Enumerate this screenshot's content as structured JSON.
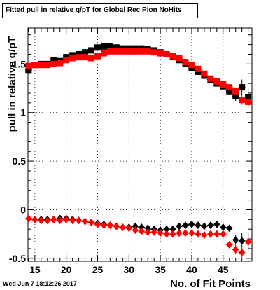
{
  "chart_data": {
    "type": "scatter",
    "title": "Fitted pull in relative q/pT  for Global Rec Pion NoHits",
    "xlabel": "No. of Fit Points",
    "ylabel": "pull in relative q/pT",
    "xlim": [
      13.9,
      49.6
    ],
    "ylim": [
      -0.53,
      1.87
    ],
    "x_ticks": [
      15,
      20,
      25,
      30,
      35,
      40,
      45
    ],
    "y_ticks": [
      -0.5,
      0,
      0.5,
      1,
      1.5
    ],
    "x_tick_labels": [
      "15",
      "20",
      "25",
      "30",
      "35",
      "40",
      "45"
    ],
    "y_tick_labels": [
      "-0.5",
      "0",
      "0.5",
      "1",
      "1.5"
    ],
    "grid": true,
    "timestamp": "Wed Jun  7 18:12:26 2017",
    "series": [
      {
        "color": "#000000",
        "marker": "square",
        "x": [
          14,
          15,
          16,
          17,
          18,
          19,
          20,
          21,
          22,
          23,
          24,
          25,
          26,
          27,
          28,
          29,
          30,
          31,
          32,
          33,
          34,
          35,
          36,
          37,
          38,
          39,
          40,
          41,
          42,
          43,
          44,
          45,
          46,
          47,
          48,
          49
        ],
        "y": [
          1.44,
          1.49,
          1.5,
          1.5,
          1.54,
          1.53,
          1.57,
          1.59,
          1.6,
          1.62,
          1.64,
          1.67,
          1.68,
          1.68,
          1.67,
          1.66,
          1.66,
          1.66,
          1.66,
          1.65,
          1.64,
          1.62,
          1.6,
          1.57,
          1.54,
          1.5,
          1.46,
          1.42,
          1.38,
          1.34,
          1.3,
          1.27,
          1.22,
          1.17,
          1.26,
          1.16
        ],
        "err": [
          0.02,
          0.02,
          0.02,
          0.02,
          0.02,
          0.02,
          0.02,
          0.02,
          0.02,
          0.02,
          0.02,
          0.02,
          0.02,
          0.02,
          0.02,
          0.02,
          0.02,
          0.02,
          0.02,
          0.02,
          0.02,
          0.02,
          0.02,
          0.02,
          0.02,
          0.02,
          0.02,
          0.02,
          0.02,
          0.02,
          0.03,
          0.03,
          0.04,
          0.05,
          0.08,
          0.1
        ]
      },
      {
        "color": "#ff0000",
        "marker": "square",
        "x": [
          14,
          15,
          16,
          17,
          18,
          19,
          20,
          21,
          22,
          23,
          24,
          25,
          26,
          27,
          28,
          29,
          30,
          31,
          32,
          33,
          34,
          35,
          36,
          37,
          38,
          39,
          40,
          41,
          42,
          43,
          44,
          45,
          46,
          47,
          48,
          49
        ],
        "y": [
          1.48,
          1.49,
          1.49,
          1.49,
          1.5,
          1.51,
          1.54,
          1.56,
          1.57,
          1.57,
          1.56,
          1.58,
          1.61,
          1.63,
          1.63,
          1.63,
          1.63,
          1.63,
          1.63,
          1.63,
          1.62,
          1.61,
          1.6,
          1.58,
          1.56,
          1.52,
          1.49,
          1.45,
          1.4,
          1.35,
          1.32,
          1.29,
          1.26,
          1.22,
          1.13,
          1.11
        ],
        "err": [
          0.02,
          0.02,
          0.02,
          0.02,
          0.02,
          0.02,
          0.02,
          0.02,
          0.02,
          0.02,
          0.02,
          0.02,
          0.02,
          0.02,
          0.02,
          0.02,
          0.02,
          0.02,
          0.02,
          0.02,
          0.02,
          0.02,
          0.02,
          0.02,
          0.02,
          0.02,
          0.02,
          0.02,
          0.02,
          0.02,
          0.03,
          0.03,
          0.03,
          0.04,
          0.05,
          0.06
        ]
      },
      {
        "color": "#000000",
        "marker": "diamond",
        "x": [
          14,
          15,
          16,
          17,
          18,
          19,
          20,
          21,
          22,
          23,
          24,
          25,
          26,
          27,
          28,
          29,
          30,
          31,
          32,
          33,
          34,
          35,
          36,
          37,
          38,
          39,
          40,
          41,
          42,
          43,
          44,
          45,
          46,
          47,
          48,
          49
        ],
        "y": [
          -0.09,
          -0.1,
          -0.1,
          -0.1,
          -0.1,
          -0.09,
          -0.09,
          -0.1,
          -0.11,
          -0.12,
          -0.13,
          -0.14,
          -0.15,
          -0.16,
          -0.17,
          -0.18,
          -0.18,
          -0.17,
          -0.18,
          -0.19,
          -0.2,
          -0.21,
          -0.2,
          -0.2,
          -0.17,
          -0.16,
          -0.15,
          -0.16,
          -0.17,
          -0.16,
          -0.15,
          -0.18,
          -0.19,
          -0.31,
          -0.32,
          -0.33
        ],
        "err": [
          0.01,
          0.01,
          0.01,
          0.01,
          0.01,
          0.01,
          0.01,
          0.01,
          0.01,
          0.01,
          0.01,
          0.01,
          0.01,
          0.01,
          0.01,
          0.01,
          0.01,
          0.01,
          0.01,
          0.01,
          0.01,
          0.01,
          0.01,
          0.01,
          0.01,
          0.01,
          0.01,
          0.01,
          0.01,
          0.01,
          0.02,
          0.02,
          0.03,
          0.05,
          0.08,
          0.1
        ]
      },
      {
        "color": "#ff0000",
        "marker": "diamond",
        "x": [
          14,
          15,
          16,
          17,
          18,
          19,
          20,
          21,
          22,
          23,
          24,
          25,
          26,
          27,
          28,
          29,
          30,
          31,
          32,
          33,
          34,
          35,
          36,
          37,
          38,
          39,
          40,
          41,
          42,
          43,
          44,
          45,
          46,
          47,
          48,
          49
        ],
        "y": [
          -0.09,
          -0.1,
          -0.11,
          -0.11,
          -0.1,
          -0.11,
          -0.1,
          -0.11,
          -0.11,
          -0.12,
          -0.13,
          -0.15,
          -0.16,
          -0.16,
          -0.17,
          -0.18,
          -0.19,
          -0.21,
          -0.22,
          -0.23,
          -0.23,
          -0.24,
          -0.25,
          -0.25,
          -0.24,
          -0.24,
          -0.24,
          -0.25,
          -0.26,
          -0.25,
          -0.25,
          -0.25,
          -0.36,
          -0.41,
          -0.44,
          -0.33
        ],
        "err": [
          0.01,
          0.01,
          0.01,
          0.01,
          0.01,
          0.01,
          0.01,
          0.01,
          0.01,
          0.01,
          0.01,
          0.01,
          0.01,
          0.01,
          0.01,
          0.01,
          0.01,
          0.01,
          0.01,
          0.01,
          0.01,
          0.01,
          0.01,
          0.01,
          0.01,
          0.01,
          0.01,
          0.01,
          0.01,
          0.01,
          0.02,
          0.02,
          0.03,
          0.05,
          0.07,
          0.08
        ]
      }
    ]
  }
}
